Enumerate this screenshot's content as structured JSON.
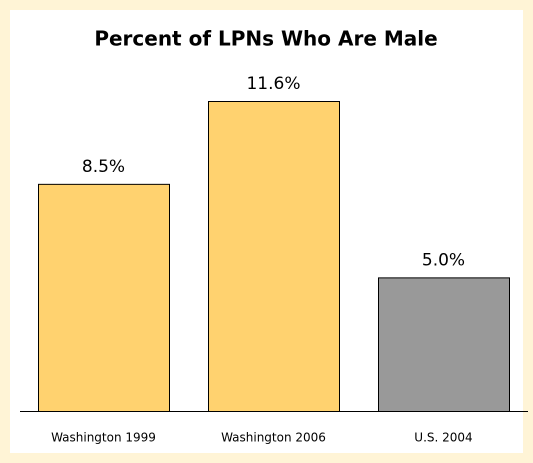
{
  "chart_data": {
    "type": "bar",
    "title": "Percent of LPNs Who Are Male",
    "categories": [
      "Washington 1999",
      "Washington 2006",
      "U.S. 2004"
    ],
    "values": [
      8.5,
      11.6,
      5.0
    ],
    "value_labels": [
      "8.5%",
      "11.6%",
      "5.0%"
    ],
    "colors": [
      "#ffd26f",
      "#ffd26f",
      "#999999"
    ]
  }
}
